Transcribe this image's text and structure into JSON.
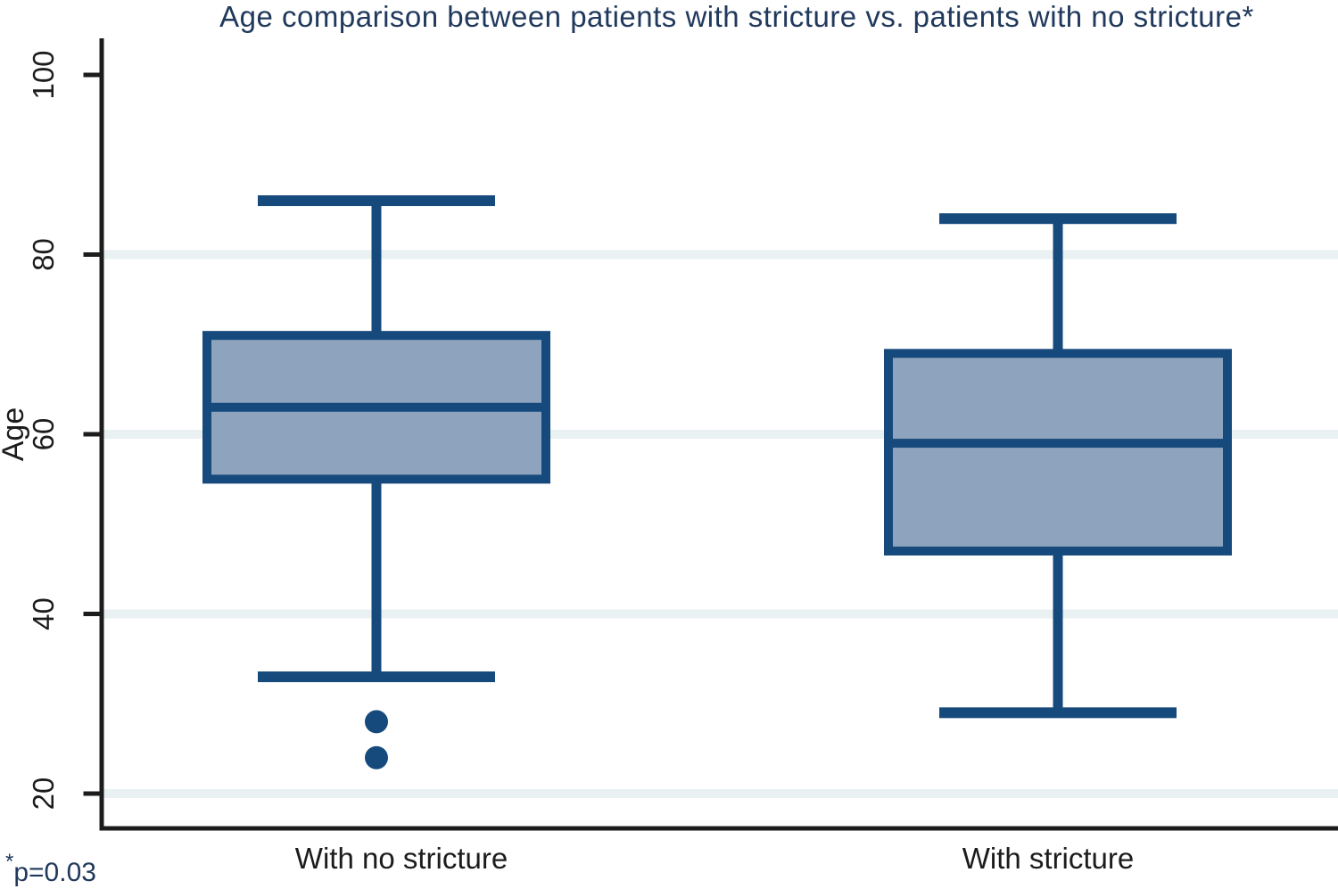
{
  "title": "Age comparison between patients with stricture vs. patients with no stricture*",
  "footnote": {
    "star": "*",
    "text": "p=0.03"
  },
  "chart_data": {
    "type": "box",
    "title": "Age comparison between patients with stricture vs. patients with no stricture*",
    "ylabel": "Age",
    "xlabel": "",
    "ylim": [
      16,
      104
    ],
    "yticks": [
      20,
      40,
      60,
      80,
      100
    ],
    "gridlines_at": [
      20,
      40,
      60,
      80
    ],
    "grid": "horizontal-only",
    "legend": "none",
    "categories": [
      "With no stricture",
      "With stricture"
    ],
    "series": [
      {
        "name": "With no stricture",
        "whisker_low": 33,
        "q1": 55,
        "median": 63,
        "q3": 71,
        "whisker_high": 86,
        "outliers": [
          28,
          24
        ]
      },
      {
        "name": "With stricture",
        "whisker_low": 29,
        "q1": 47,
        "median": 59,
        "q3": 69,
        "whisker_high": 84,
        "outliers": []
      }
    ],
    "annotation": "*p=0.03",
    "colors": {
      "box_fill": "#8EA4BE",
      "box_border": "#174A7C",
      "gridline": "#E9F1F3",
      "axis": "#1C1C1C",
      "title_text": "#20395C",
      "footnote_text": "#20395C",
      "tick_label": "#1C1C1C"
    }
  }
}
